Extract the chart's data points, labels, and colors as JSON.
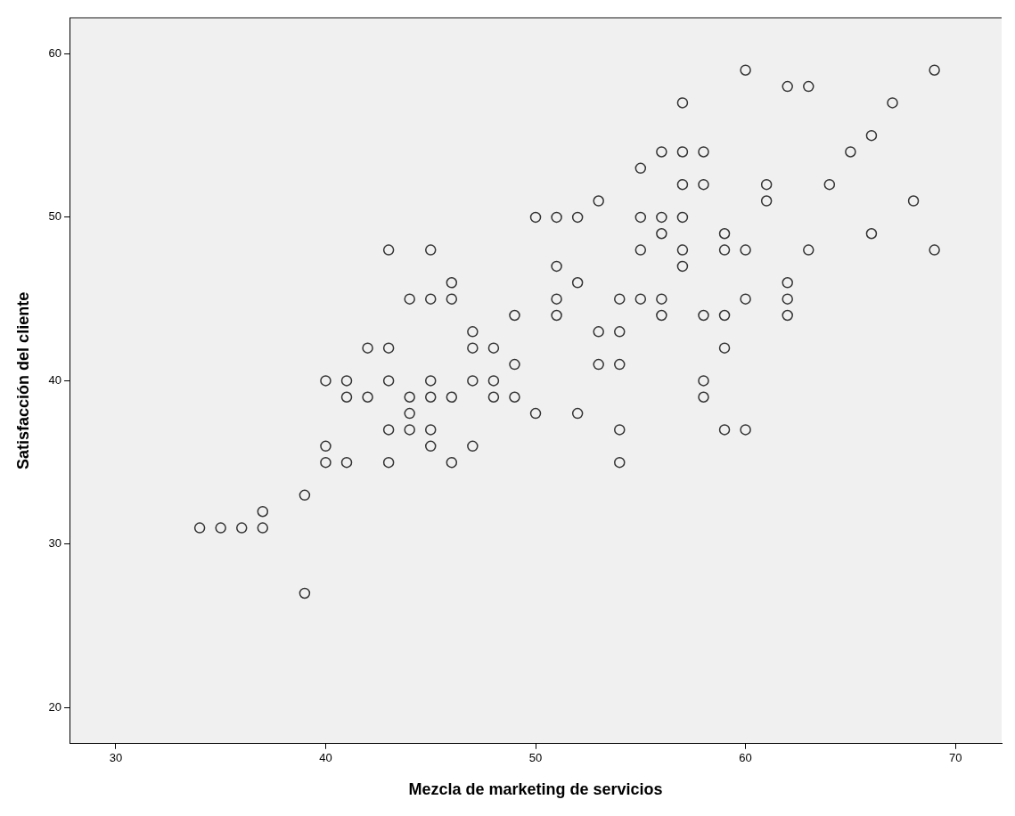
{
  "chart_data": {
    "type": "scatter",
    "xlabel": "Mezcla de marketing de servicios",
    "ylabel": "Satisfacción del cliente",
    "x": [
      34,
      35,
      36,
      37,
      37,
      39,
      39,
      40,
      40,
      40,
      41,
      41,
      41,
      42,
      42,
      43,
      43,
      43,
      43,
      43,
      44,
      44,
      44,
      44,
      45,
      45,
      45,
      45,
      45,
      45,
      46,
      46,
      46,
      46,
      47,
      47,
      47,
      47,
      48,
      48,
      48,
      49,
      49,
      49,
      50,
      50,
      51,
      51,
      51,
      51,
      52,
      52,
      52,
      53,
      53,
      53,
      54,
      54,
      54,
      54,
      54,
      55,
      55,
      55,
      55,
      56,
      56,
      56,
      56,
      56,
      57,
      57,
      57,
      57,
      57,
      57,
      58,
      58,
      58,
      58,
      58,
      59,
      59,
      59,
      59,
      59,
      60,
      60,
      60,
      60,
      61,
      61,
      62,
      62,
      62,
      62,
      63,
      63,
      64,
      65,
      66,
      66,
      67,
      68,
      69,
      69
    ],
    "series": [
      {
        "color": "#333333",
        "values": [
          31,
          31,
          31,
          31,
          32,
          33,
          27,
          40,
          36,
          35,
          40,
          39,
          35,
          42,
          39,
          48,
          42,
          40,
          37,
          35,
          45,
          39,
          38,
          37,
          48,
          45,
          40,
          39,
          37,
          36,
          46,
          45,
          39,
          35,
          43,
          42,
          40,
          36,
          42,
          40,
          39,
          44,
          41,
          39,
          50,
          38,
          50,
          47,
          45,
          44,
          50,
          46,
          38,
          51,
          43,
          41,
          45,
          43,
          41,
          37,
          35,
          53,
          50,
          48,
          45,
          54,
          50,
          49,
          45,
          44,
          57,
          54,
          52,
          50,
          48,
          47,
          54,
          52,
          44,
          40,
          39,
          49,
          48,
          44,
          42,
          37,
          59,
          48,
          45,
          37,
          52,
          51,
          58,
          46,
          45,
          44,
          58,
          48,
          52,
          54,
          55,
          49,
          57,
          51,
          59,
          48
        ]
      }
    ],
    "xlim": [
      27.8,
      72.2
    ],
    "ylim": [
      17.8,
      62.2
    ],
    "xticks": [
      30,
      40,
      50,
      60,
      70
    ],
    "yticks": [
      20,
      30,
      40,
      50,
      60
    ],
    "grid": false,
    "legend": false,
    "marker": "circle"
  }
}
